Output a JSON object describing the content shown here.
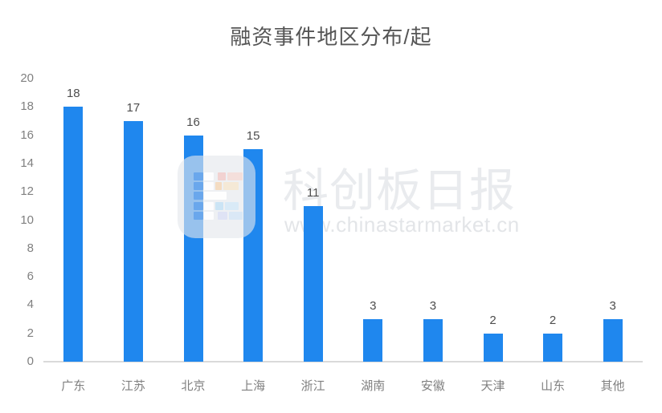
{
  "title": "融资事件地区分布/起",
  "watermark": {
    "brand": "科创板日报",
    "url": "www.chinastarmarket.cn",
    "logo_icon": "mosaic-brand-logo"
  },
  "colors": {
    "bar": "#1f87ee",
    "title_text": "#555555",
    "axis_text": "#808080",
    "data_label_text": "#4d4d4d",
    "axis_line": "#dadada",
    "watermark_text": "#e9ebee"
  },
  "chart_data": {
    "type": "bar",
    "title": "融资事件地区分布/起",
    "categories": [
      "广东",
      "江苏",
      "北京",
      "上海",
      "浙江",
      "湖南",
      "安徽",
      "天津",
      "山东",
      "其他"
    ],
    "values": [
      18,
      17,
      16,
      15,
      11,
      3,
      3,
      2,
      2,
      3
    ],
    "xlabel": "",
    "ylabel": "",
    "ylim": [
      0,
      20
    ],
    "yticks": [
      0,
      2,
      4,
      6,
      8,
      10,
      12,
      14,
      16,
      18,
      20
    ],
    "grid": false,
    "legend_position": "none",
    "data_labels_shown": true
  }
}
